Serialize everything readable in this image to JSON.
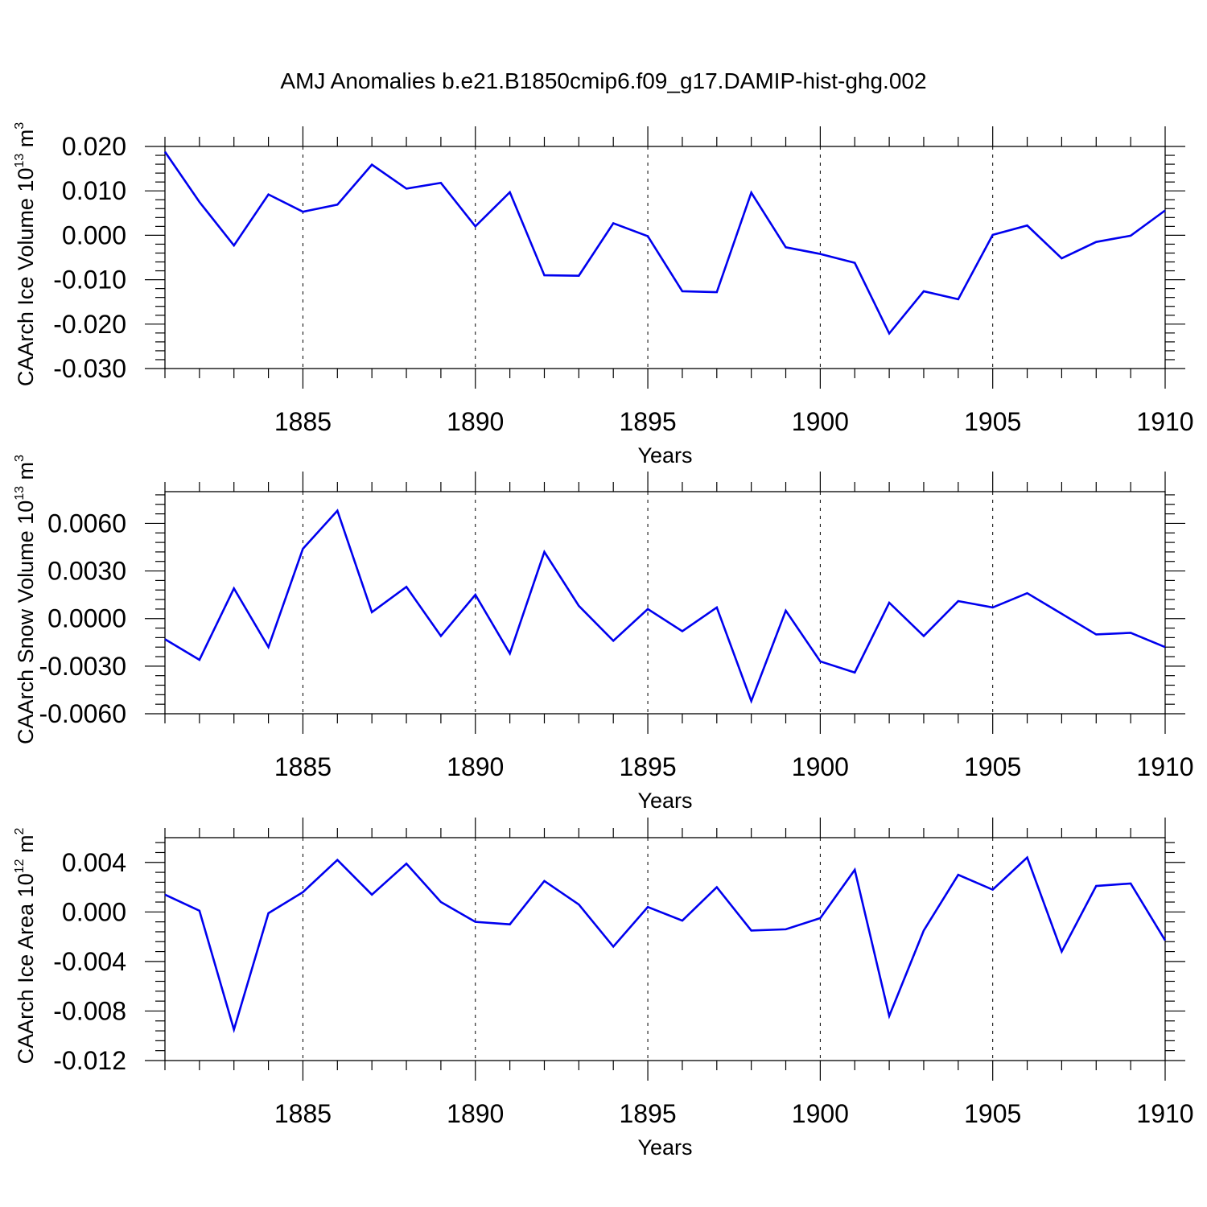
{
  "figure": {
    "title": "AMJ Anomalies b.e21.B1850cmip6.f09_g17.DAMIP-hist-ghg.002"
  },
  "colors": {
    "line": "#0000ee",
    "axes": "#000000",
    "background": "#ffffff"
  },
  "chart_data": [
    {
      "type": "line",
      "xlabel": "Years",
      "ylabel": {
        "prefix": "CAArch Ice Volume 10",
        "exp": "13",
        "mid": " m",
        "unit_exp": "3"
      },
      "xlim": [
        1881,
        1910
      ],
      "ylim": [
        -0.03,
        0.02
      ],
      "xticks": [
        1885,
        1890,
        1895,
        1900,
        1905,
        1910
      ],
      "yticks": [
        -0.03,
        -0.02,
        -0.01,
        0.0,
        0.01,
        0.02
      ],
      "ytick_labels": [
        "-0.030",
        "-0.020",
        "-0.010",
        "0.000",
        "0.010",
        "0.020"
      ],
      "grid": "x-dashed",
      "x": [
        1881,
        1882,
        1883,
        1884,
        1885,
        1886,
        1887,
        1888,
        1889,
        1890,
        1891,
        1892,
        1893,
        1894,
        1895,
        1896,
        1897,
        1898,
        1899,
        1900,
        1901,
        1902,
        1903,
        1904,
        1905,
        1906,
        1907,
        1908,
        1909,
        1910
      ],
      "series": [
        {
          "values": [
            0.0188,
            0.0075,
            -0.0023,
            0.0092,
            0.0053,
            0.0069,
            0.0159,
            0.0105,
            0.0118,
            0.002,
            0.0097,
            -0.009,
            -0.0091,
            0.0027,
            -0.0002,
            -0.0126,
            -0.0128,
            0.0096,
            -0.0027,
            -0.0042,
            -0.0062,
            -0.0221,
            -0.0126,
            -0.0144,
            0.0001,
            0.0022,
            -0.0052,
            -0.0015,
            -0.0001,
            0.0056
          ]
        }
      ]
    },
    {
      "type": "line",
      "xlabel": "Years",
      "ylabel": {
        "prefix": "CAArch Snow Volume 10",
        "exp": "13",
        "mid": " m",
        "unit_exp": "3"
      },
      "xlim": [
        1881,
        1910
      ],
      "ylim": [
        -0.006,
        0.008
      ],
      "xticks": [
        1885,
        1890,
        1895,
        1900,
        1905,
        1910
      ],
      "yticks": [
        -0.006,
        -0.003,
        0.0,
        0.003,
        0.006
      ],
      "ytick_labels": [
        "-0.0060",
        "-0.0030",
        "0.0000",
        "0.0030",
        "0.0060"
      ],
      "grid": "x-dashed",
      "x": [
        1881,
        1882,
        1883,
        1884,
        1885,
        1886,
        1887,
        1888,
        1889,
        1890,
        1891,
        1892,
        1893,
        1894,
        1895,
        1896,
        1897,
        1898,
        1899,
        1900,
        1901,
        1902,
        1903,
        1904,
        1905,
        1906,
        1907,
        1908,
        1909,
        1910
      ],
      "series": [
        {
          "values": [
            -0.0013,
            -0.0026,
            0.0019,
            -0.0018,
            0.0044,
            0.0068,
            0.0004,
            0.002,
            -0.0011,
            0.0015,
            -0.0022,
            0.0042,
            0.0008,
            -0.0014,
            0.0006,
            -0.0008,
            0.0007,
            -0.0052,
            0.0005,
            -0.0027,
            -0.0034,
            0.001,
            -0.0011,
            0.0011,
            0.0007,
            0.0016,
            0.0003,
            -0.001,
            -0.0009,
            -0.0018
          ]
        }
      ]
    },
    {
      "type": "line",
      "xlabel": "Years",
      "ylabel": {
        "prefix": "CAArch Ice Area 10",
        "exp": "12",
        "mid": " m",
        "unit_exp": "2"
      },
      "xlim": [
        1881,
        1910
      ],
      "ylim": [
        -0.012,
        0.006
      ],
      "xticks": [
        1885,
        1890,
        1895,
        1900,
        1905,
        1910
      ],
      "yticks": [
        -0.012,
        -0.008,
        -0.004,
        0.0,
        0.004
      ],
      "ytick_labels": [
        "-0.012",
        "-0.008",
        "-0.004",
        "0.000",
        "0.004"
      ],
      "grid": "x-dashed",
      "x": [
        1881,
        1882,
        1883,
        1884,
        1885,
        1886,
        1887,
        1888,
        1889,
        1890,
        1891,
        1892,
        1893,
        1894,
        1895,
        1896,
        1897,
        1898,
        1899,
        1900,
        1901,
        1902,
        1903,
        1904,
        1905,
        1906,
        1907,
        1908,
        1909,
        1910
      ],
      "series": [
        {
          "values": [
            0.0014,
            0.0001,
            -0.0095,
            -0.0001,
            0.0016,
            0.0042,
            0.0014,
            0.0039,
            0.0008,
            -0.0008,
            -0.001,
            0.0025,
            0.0006,
            -0.0028,
            0.0004,
            -0.0007,
            0.002,
            -0.0015,
            -0.0014,
            -0.0005,
            0.0034,
            -0.0084,
            -0.0015,
            0.003,
            0.0018,
            0.0044,
            -0.0032,
            0.0021,
            0.0023,
            -0.0023
          ]
        }
      ]
    }
  ]
}
